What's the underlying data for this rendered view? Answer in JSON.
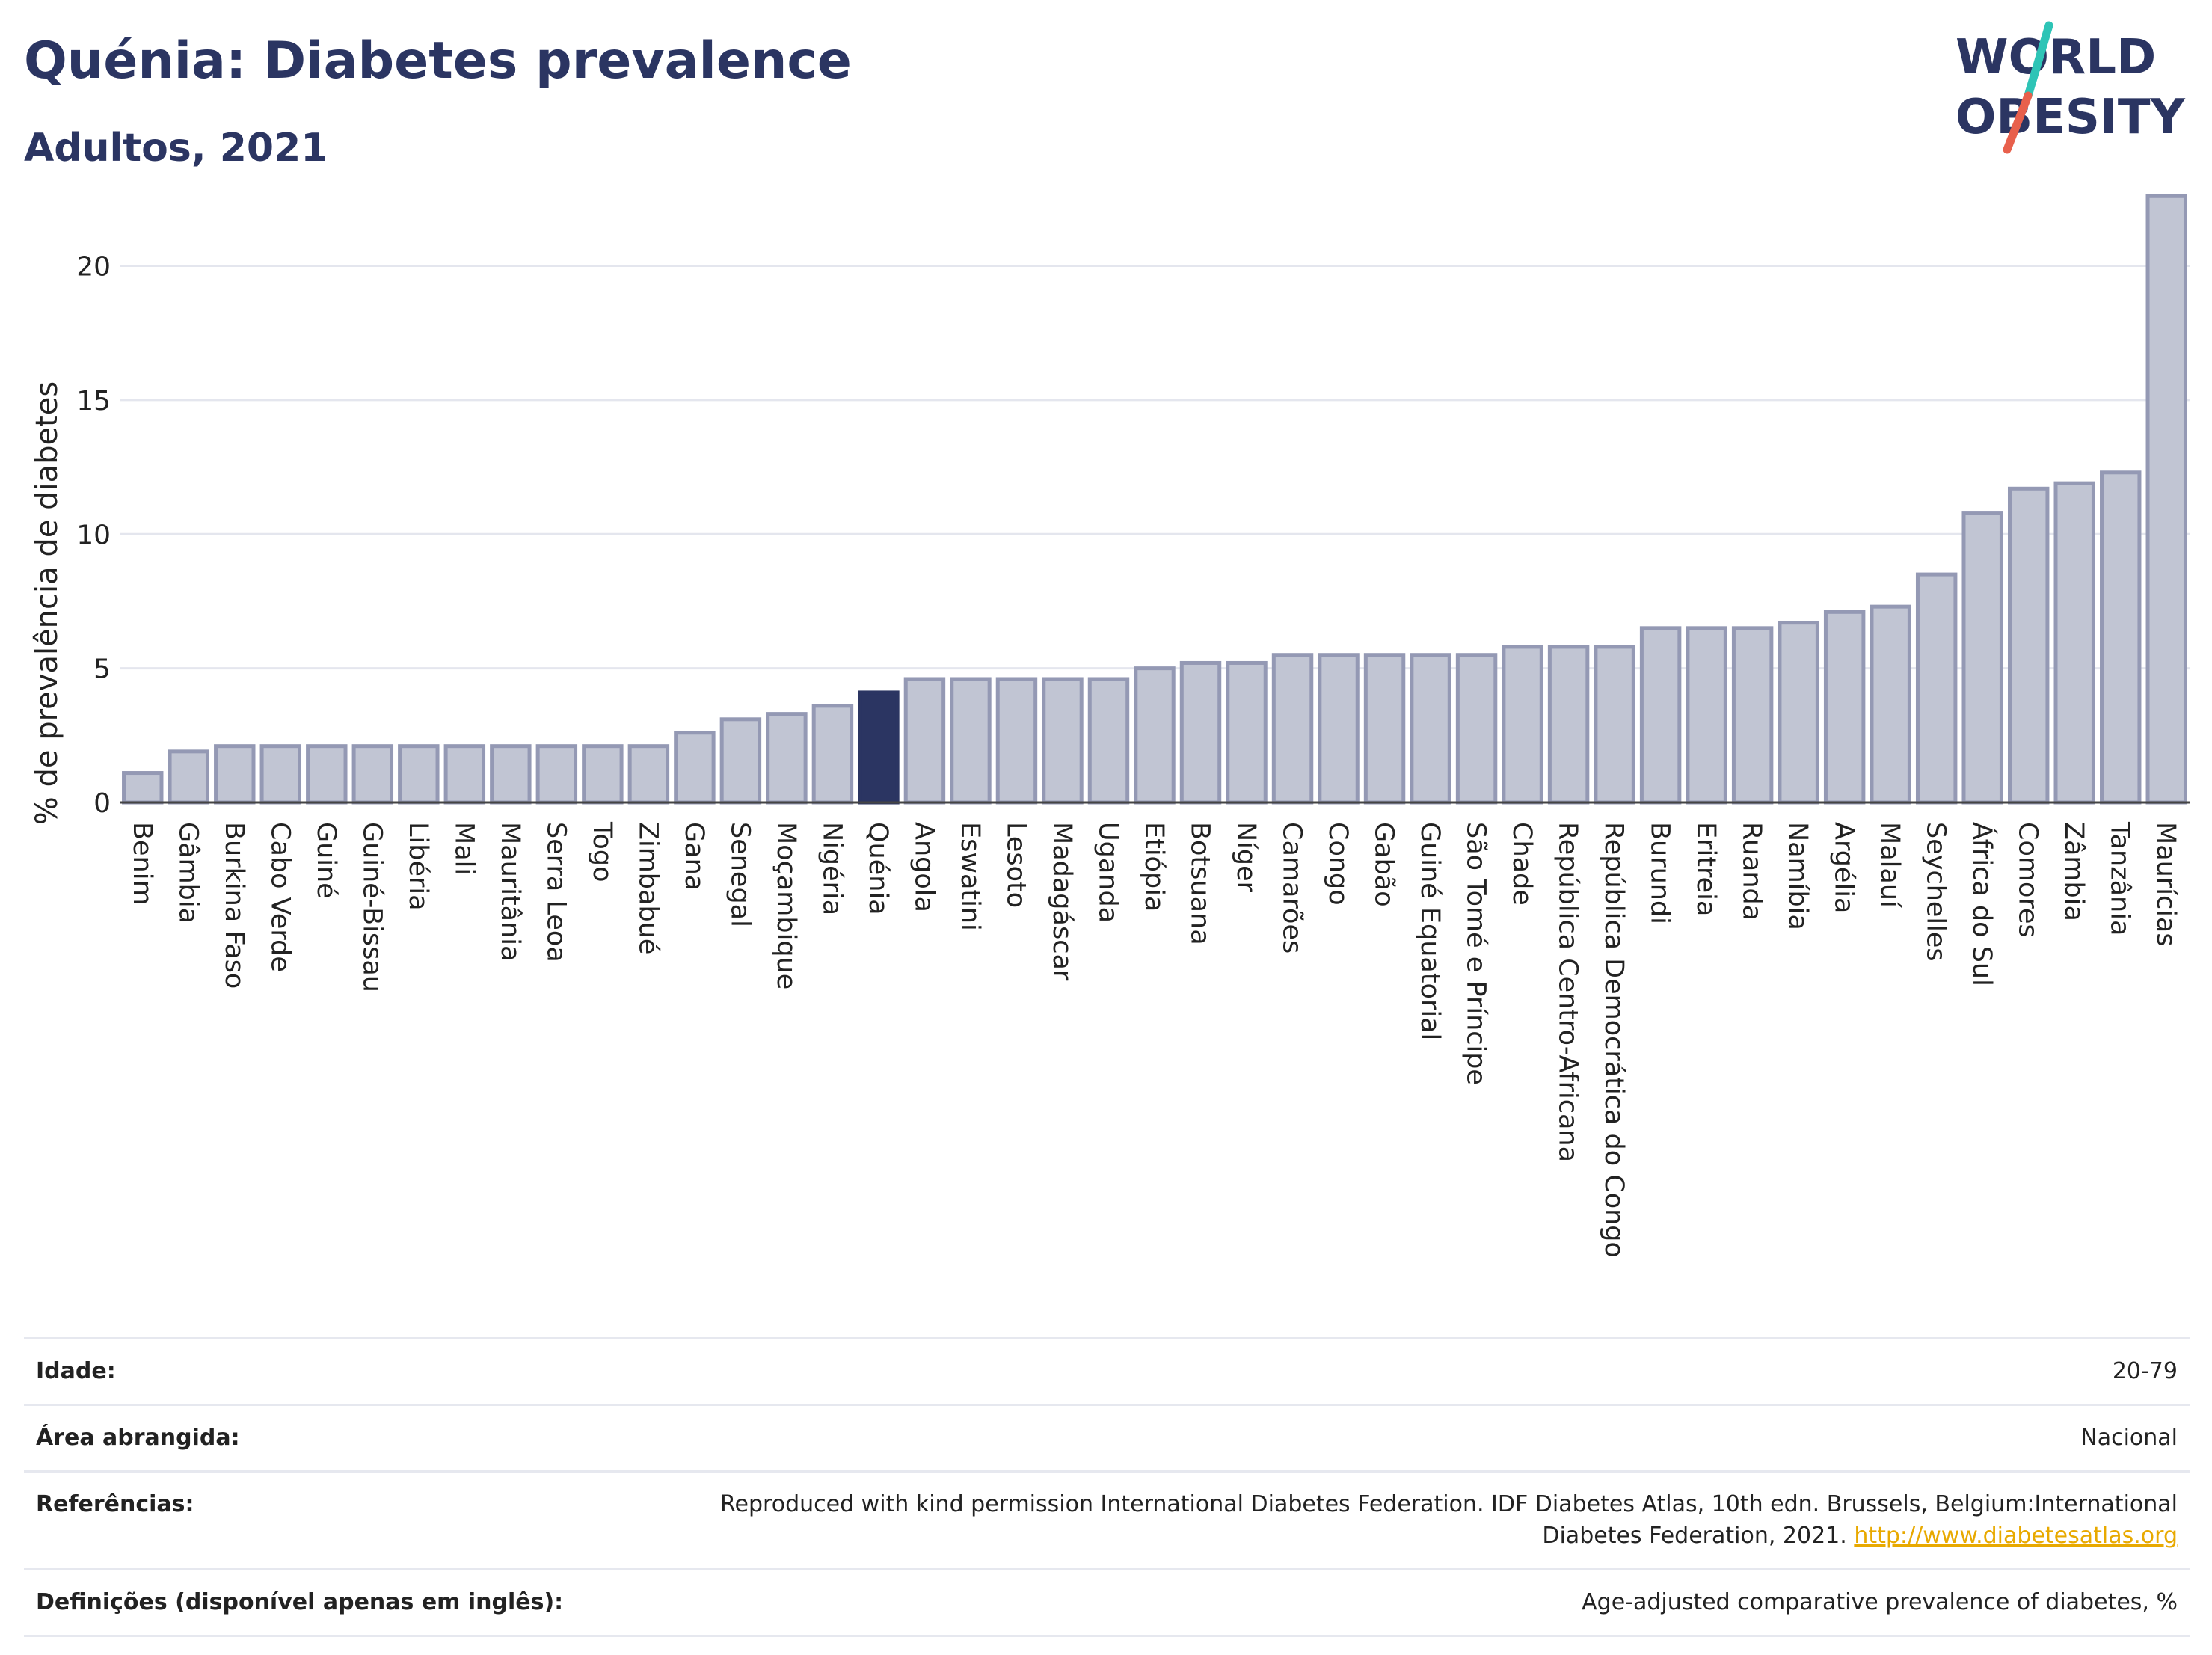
{
  "header": {
    "title": "Quénia: Diabetes prevalence",
    "subtitle": "Adultos, 2021"
  },
  "logo": {
    "line1": "WORLD",
    "line2": "OBESITY",
    "slash_colors": [
      "#2ec4b6",
      "#e8604c"
    ]
  },
  "colors": {
    "highlight": "#2b3562",
    "bar_fill": "#c1c5d3",
    "bar_stroke": "#9499b4",
    "title": "#2b3562"
  },
  "chart_data": {
    "type": "bar",
    "title": "Quénia: Diabetes prevalence",
    "subtitle": "Adultos, 2021",
    "xlabel": "",
    "ylabel": "% de prevalência de diabetes",
    "ylim": [
      0,
      23.5
    ],
    "yticks": [
      0,
      5,
      10,
      15,
      20
    ],
    "grid": true,
    "highlight": "Quénia",
    "categories": [
      "Benim",
      "Gâmbia",
      "Burkina Faso",
      "Cabo Verde",
      "Guiné",
      "Guiné-Bissau",
      "Libéria",
      "Mali",
      "Mauritânia",
      "Serra Leoa",
      "Togo",
      "Zimbabué",
      "Gana",
      "Senegal",
      "Moçambique",
      "Nigéria",
      "Quénia",
      "Angola",
      "Eswatini",
      "Lesoto",
      "Madagáscar",
      "Uganda",
      "Etiópia",
      "Botsuana",
      "Níger",
      "Camarões",
      "Congo",
      "Gabão",
      "Guiné Equatorial",
      "São Tomé e Príncipe",
      "Chade",
      "República Centro-Africana",
      "República Democrática do Congo",
      "Burundi",
      "Eritreia",
      "Ruanda",
      "Namíbia",
      "Argélia",
      "Malauí",
      "Seychelles",
      "África do Sul",
      "Comores",
      "Zâmbia",
      "Tanzânia",
      "Maurícias"
    ],
    "values": [
      1.1,
      1.9,
      2.1,
      2.1,
      2.1,
      2.1,
      2.1,
      2.1,
      2.1,
      2.1,
      2.1,
      2.1,
      2.6,
      3.1,
      3.3,
      3.6,
      4.1,
      4.6,
      4.6,
      4.6,
      4.6,
      4.6,
      5.0,
      5.2,
      5.2,
      5.5,
      5.5,
      5.5,
      5.5,
      5.5,
      5.8,
      5.8,
      5.8,
      6.5,
      6.5,
      6.5,
      6.7,
      7.1,
      7.3,
      8.5,
      10.8,
      11.7,
      11.9,
      12.3,
      22.6
    ]
  },
  "info": {
    "rows": [
      {
        "label": "Idade:",
        "value": "20-79"
      },
      {
        "label": "Área abrangida:",
        "value": "Nacional"
      },
      {
        "label": "Referências:",
        "value": "Reproduced with kind permission International Diabetes Federation.  IDF Diabetes Atlas, 10th edn. Brussels, Belgium:International Diabetes Federation, 2021.",
        "link": "http://www.diabetesatlas.org"
      },
      {
        "label": "Definições (disponível apenas em inglês):",
        "value": "Age-adjusted comparative prevalence of diabetes, %"
      }
    ]
  }
}
